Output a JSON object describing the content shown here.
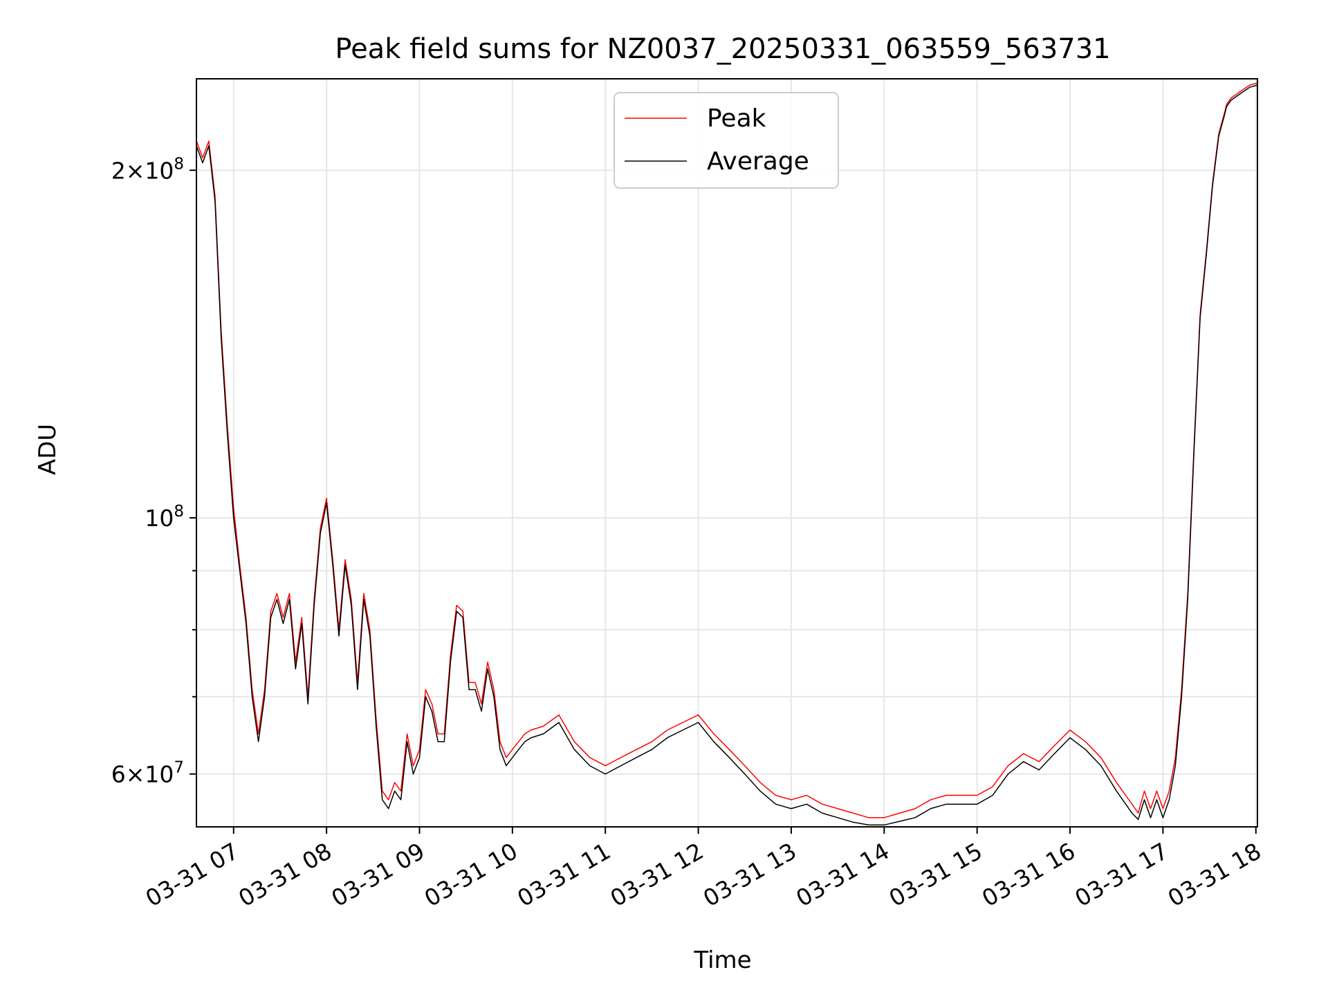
{
  "chart_data": {
    "type": "line",
    "title": "Peak field sums for NZ0037_20250331_063559_563731",
    "xlabel": "Time",
    "ylabel": "ADU",
    "yscale": "log",
    "grid": true,
    "legend_position": "upper center",
    "x_ticks": [
      "03-31 07",
      "03-31 08",
      "03-31 09",
      "03-31 10",
      "03-31 11",
      "03-31 12",
      "03-31 13",
      "03-31 14",
      "03-31 15",
      "03-31 16",
      "03-31 17",
      "03-31 18"
    ],
    "y_ticks": [
      {
        "value": 200000000,
        "mant": "2",
        "exp": "8"
      },
      {
        "value": 100000000,
        "mant": "",
        "exp": "8"
      },
      {
        "value": 60000000,
        "mant": "6",
        "exp": "7"
      }
    ],
    "x_range": [
      "03-31 06:36",
      "03-31 18:01"
    ],
    "y_range": [
      54000000,
      240000000
    ],
    "series": [
      {
        "name": "Peak",
        "color": "#ff0000",
        "x": [
          "06:36",
          "06:40",
          "06:44",
          "06:48",
          "06:52",
          "06:56",
          "07:00",
          "07:04",
          "07:08",
          "07:12",
          "07:16",
          "07:20",
          "07:24",
          "07:28",
          "07:32",
          "07:36",
          "07:40",
          "07:44",
          "07:48",
          "07:52",
          "07:56",
          "08:00",
          "08:04",
          "08:08",
          "08:12",
          "08:16",
          "08:20",
          "08:24",
          "08:28",
          "08:32",
          "08:36",
          "08:40",
          "08:44",
          "08:48",
          "08:52",
          "08:56",
          "09:00",
          "09:04",
          "09:08",
          "09:12",
          "09:16",
          "09:20",
          "09:24",
          "09:28",
          "09:32",
          "09:36",
          "09:40",
          "09:44",
          "09:48",
          "09:52",
          "09:56",
          "10:00",
          "10:04",
          "10:08",
          "10:12",
          "10:20",
          "10:30",
          "10:40",
          "10:50",
          "11:00",
          "11:10",
          "11:20",
          "11:30",
          "11:40",
          "11:50",
          "12:00",
          "12:10",
          "12:20",
          "12:30",
          "12:40",
          "12:50",
          "13:00",
          "13:10",
          "13:20",
          "13:30",
          "13:40",
          "13:50",
          "14:00",
          "14:10",
          "14:20",
          "14:30",
          "14:40",
          "14:50",
          "15:00",
          "15:10",
          "15:20",
          "15:30",
          "15:40",
          "15:50",
          "16:00",
          "16:10",
          "16:20",
          "16:30",
          "16:40",
          "16:44",
          "16:48",
          "16:52",
          "16:56",
          "17:00",
          "17:04",
          "17:08",
          "17:12",
          "17:16",
          "17:20",
          "17:24",
          "17:28",
          "17:32",
          "17:36",
          "17:40",
          "17:41",
          "17:42",
          "17:44",
          "17:48",
          "17:52",
          "17:56",
          "18:01"
        ],
        "values": [
          212000000,
          205000000,
          212000000,
          190000000,
          145000000,
          120000000,
          102000000,
          91000000,
          82000000,
          71000000,
          65000000,
          71000000,
          83000000,
          86000000,
          82000000,
          86000000,
          75000000,
          82000000,
          70000000,
          85000000,
          98000000,
          104000000,
          92000000,
          80000000,
          92000000,
          85000000,
          72000000,
          86000000,
          80000000,
          67000000,
          58000000,
          57000000,
          59000000,
          58000000,
          65000000,
          61000000,
          63000000,
          71000000,
          69000000,
          65000000,
          65000000,
          76000000,
          84000000,
          83000000,
          72000000,
          72000000,
          69000000,
          75000000,
          71000000,
          64000000,
          62000000,
          63000000,
          64000000,
          65000000,
          65500000,
          66000000,
          67500000,
          64000000,
          62000000,
          61000000,
          62000000,
          63000000,
          64000000,
          65500000,
          66500000,
          67500000,
          65000000,
          63000000,
          61000000,
          59000000,
          57500000,
          57000000,
          57500000,
          56500000,
          56000000,
          55500000,
          55000000,
          55000000,
          55500000,
          56000000,
          57000000,
          57500000,
          57500000,
          57500000,
          58500000,
          61000000,
          62500000,
          61500000,
          63500000,
          65500000,
          64000000,
          62000000,
          59000000,
          56500000,
          55500000,
          58000000,
          56000000,
          58000000,
          56000000,
          58000000,
          62000000,
          71000000,
          86000000,
          115000000,
          150000000,
          170000000,
          195000000,
          215000000,
          225000000,
          228000000,
          229000000,
          231000000,
          233000000,
          235000000,
          237000000,
          238000000
        ]
      },
      {
        "name": "Average",
        "color": "#000000",
        "x": [
          "06:36",
          "06:40",
          "06:44",
          "06:48",
          "06:52",
          "06:56",
          "07:00",
          "07:04",
          "07:08",
          "07:12",
          "07:16",
          "07:20",
          "07:24",
          "07:28",
          "07:32",
          "07:36",
          "07:40",
          "07:44",
          "07:48",
          "07:52",
          "07:56",
          "08:00",
          "08:04",
          "08:08",
          "08:12",
          "08:16",
          "08:20",
          "08:24",
          "08:28",
          "08:32",
          "08:36",
          "08:40",
          "08:44",
          "08:48",
          "08:52",
          "08:56",
          "09:00",
          "09:04",
          "09:08",
          "09:12",
          "09:16",
          "09:20",
          "09:24",
          "09:28",
          "09:32",
          "09:36",
          "09:40",
          "09:44",
          "09:48",
          "09:52",
          "09:56",
          "10:00",
          "10:04",
          "10:08",
          "10:12",
          "10:20",
          "10:30",
          "10:40",
          "10:50",
          "11:00",
          "11:10",
          "11:20",
          "11:30",
          "11:40",
          "11:50",
          "12:00",
          "12:10",
          "12:20",
          "12:30",
          "12:40",
          "12:50",
          "13:00",
          "13:10",
          "13:20",
          "13:30",
          "13:40",
          "13:50",
          "14:00",
          "14:10",
          "14:20",
          "14:30",
          "14:40",
          "14:50",
          "15:00",
          "15:10",
          "15:20",
          "15:30",
          "15:40",
          "15:50",
          "16:00",
          "16:10",
          "16:20",
          "16:30",
          "16:40",
          "16:44",
          "16:48",
          "16:52",
          "16:56",
          "17:00",
          "17:04",
          "17:08",
          "17:12",
          "17:16",
          "17:20",
          "17:24",
          "17:28",
          "17:32",
          "17:36",
          "17:40",
          "17:41",
          "17:42",
          "17:44",
          "17:48",
          "17:52",
          "17:56",
          "18:01"
        ],
        "values": [
          210000000,
          203000000,
          210000000,
          188000000,
          143000000,
          118000000,
          100000000,
          90000000,
          81000000,
          70000000,
          64000000,
          70000000,
          82000000,
          85000000,
          81000000,
          85000000,
          74000000,
          81000000,
          69000000,
          84000000,
          97000000,
          103000000,
          91000000,
          79000000,
          91000000,
          84000000,
          71000000,
          85000000,
          79000000,
          66000000,
          57000000,
          56000000,
          58000000,
          57000000,
          64000000,
          60000000,
          62000000,
          70000000,
          68000000,
          64000000,
          64000000,
          75000000,
          83000000,
          82000000,
          71000000,
          71000000,
          68000000,
          74000000,
          70000000,
          63000000,
          61000000,
          62000000,
          63000000,
          64000000,
          64500000,
          65000000,
          66500000,
          63000000,
          61000000,
          60000000,
          61000000,
          62000000,
          63000000,
          64500000,
          65500000,
          66500000,
          64000000,
          62000000,
          60000000,
          58000000,
          56500000,
          56000000,
          56500000,
          55500000,
          55000000,
          54500000,
          54200000,
          54200000,
          54600000,
          55000000,
          56000000,
          56500000,
          56500000,
          56500000,
          57500000,
          60000000,
          61500000,
          60500000,
          62500000,
          64500000,
          63000000,
          61000000,
          58000000,
          55500000,
          54800000,
          57000000,
          55000000,
          57000000,
          55000000,
          57000000,
          61000000,
          70000000,
          85000000,
          114000000,
          149000000,
          169000000,
          194000000,
          214000000,
          224000000,
          227000000,
          228000000,
          230000000,
          232000000,
          234000000,
          236000000,
          237000000
        ]
      }
    ]
  }
}
